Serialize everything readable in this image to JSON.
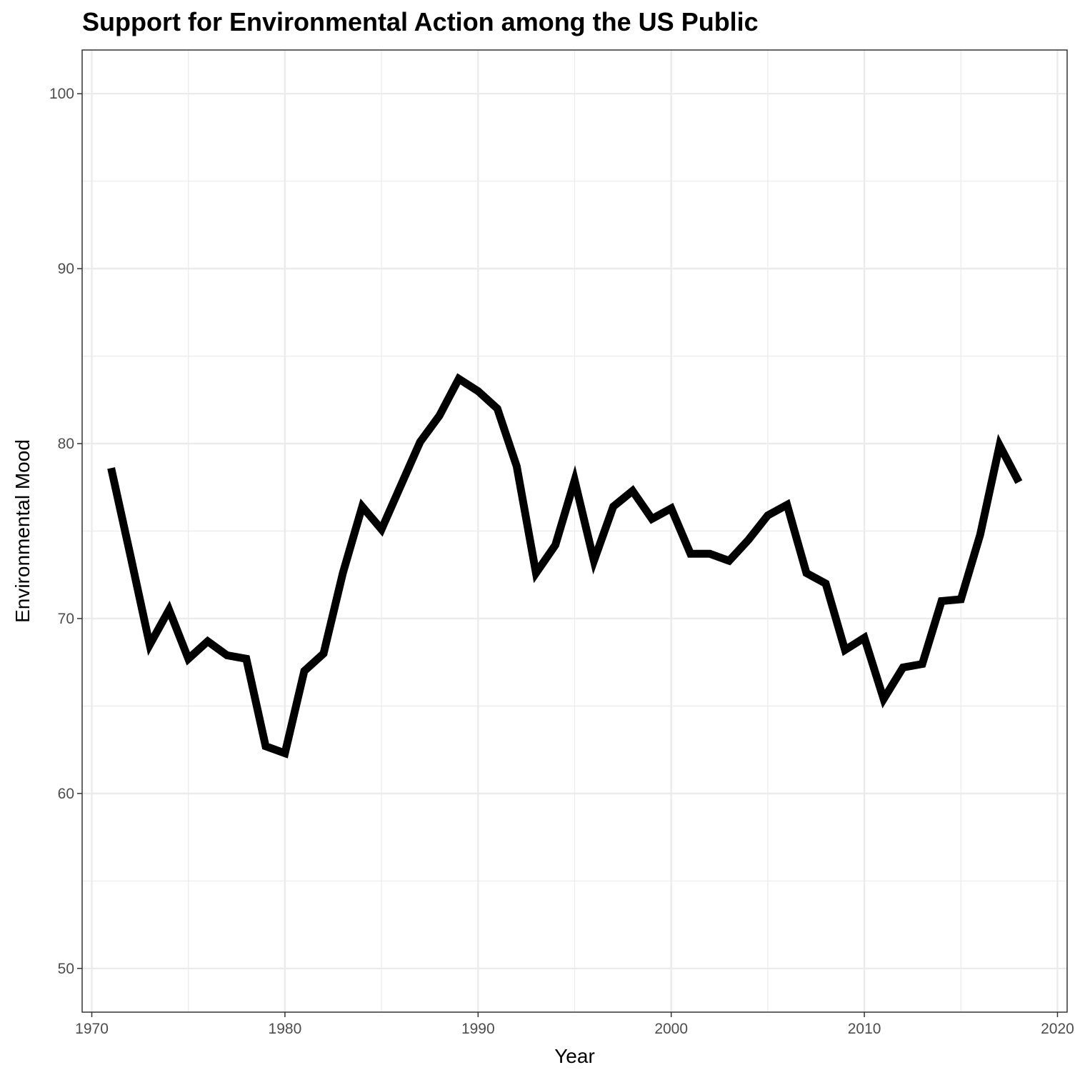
{
  "chart_data": {
    "type": "line",
    "title": "Support for Environmental Action among the US Public",
    "xlabel": "Year",
    "ylabel": "Environmental Mood",
    "xlim": [
      1969.5,
      2020.5
    ],
    "ylim": [
      47.5,
      102.5
    ],
    "x_ticks": [
      1970,
      1980,
      1990,
      2000,
      2010,
      2020
    ],
    "y_ticks": [
      50,
      60,
      70,
      80,
      90,
      100
    ],
    "x_minor": [
      1975,
      1985,
      1995,
      2005,
      2015
    ],
    "y_minor": [
      55,
      65,
      75,
      85,
      95
    ],
    "grid": true,
    "legend": "none",
    "line_color": "#000000",
    "series": [
      {
        "x": [
          1971,
          1972,
          1973,
          1974,
          1975,
          1976,
          1977,
          1978,
          1979,
          1980,
          1981,
          1982,
          1983,
          1984,
          1985,
          1986,
          1987,
          1988,
          1989,
          1990,
          1991,
          1992,
          1993,
          1994,
          1995,
          1996,
          1997,
          1998,
          1999,
          2000,
          2001,
          2002,
          2003,
          2004,
          2005,
          2006,
          2007,
          2008,
          2009,
          2010,
          2011,
          2012,
          2013,
          2014,
          2015,
          2016,
          2017,
          2018
        ],
        "values": [
          78.6,
          73.6,
          68.5,
          70.5,
          67.7,
          68.7,
          67.9,
          67.7,
          62.7,
          62.3,
          67.0,
          68.0,
          72.6,
          76.4,
          75.1,
          77.6,
          80.1,
          81.6,
          83.7,
          83.0,
          82.0,
          78.7,
          72.6,
          74.2,
          77.9,
          73.3,
          76.4,
          77.3,
          75.7,
          76.3,
          73.7,
          73.7,
          73.3,
          74.5,
          75.9,
          76.5,
          72.6,
          72.0,
          68.2,
          68.9,
          65.4,
          67.2,
          67.4,
          71.0,
          71.1,
          74.8,
          79.9,
          77.8
        ]
      }
    ]
  }
}
